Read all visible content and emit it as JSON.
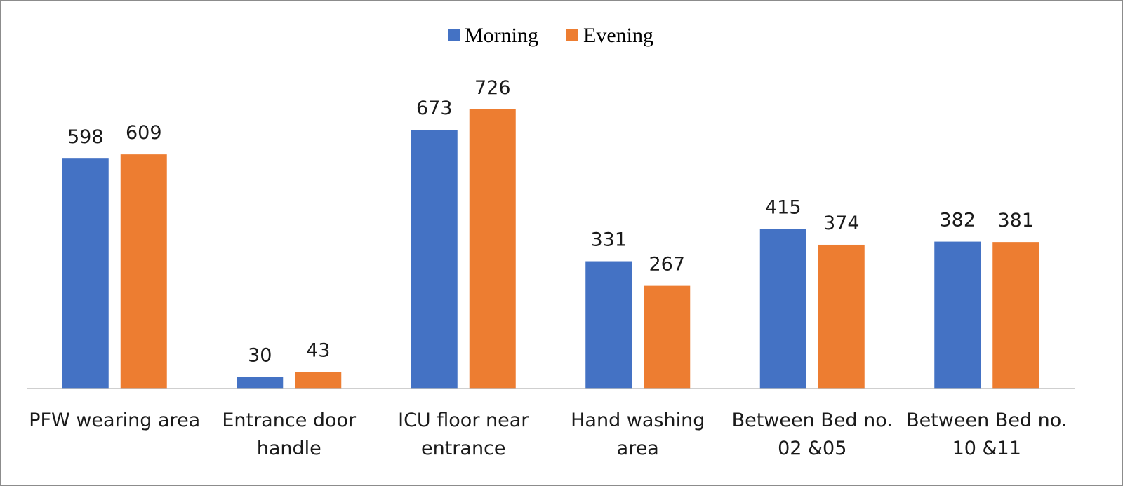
{
  "chart_data": {
    "type": "bar",
    "title": "",
    "xlabel": "",
    "ylabel": "",
    "ylim": [
      0,
      726
    ],
    "grid": false,
    "legend_position": "top-center",
    "categories": [
      [
        "PFW wearing area"
      ],
      [
        "Entrance door",
        "handle"
      ],
      [
        "ICU floor near",
        "entrance"
      ],
      [
        "Hand washing",
        "area"
      ],
      [
        "Between Bed no.",
        "02 &05"
      ],
      [
        "Between Bed no.",
        "10 &11"
      ]
    ],
    "series": [
      {
        "name": "Morning",
        "color": "#4472c4",
        "values": [
          598,
          30,
          673,
          331,
          415,
          382
        ]
      },
      {
        "name": "Evening",
        "color": "#ed7d31",
        "values": [
          609,
          43,
          726,
          267,
          374,
          381
        ]
      }
    ]
  }
}
